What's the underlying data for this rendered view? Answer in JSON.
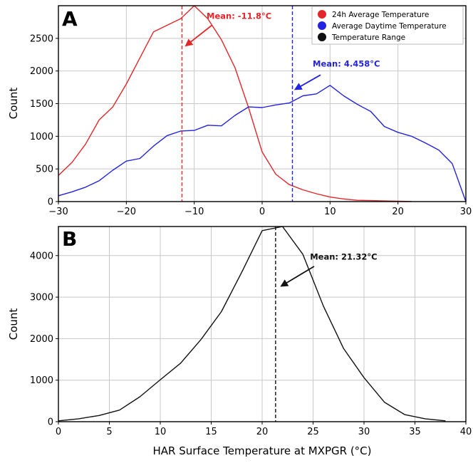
{
  "figure": {
    "xlabel": "HAR Surface Temperature at MXPGR (°C)"
  },
  "colors": {
    "series_24h": "#e3262a",
    "series_daytime": "#2323e0",
    "series_range": "#111111",
    "grid": "#c8c8c8",
    "axis": "#000000"
  },
  "chart_data": [
    {
      "type": "line",
      "panel_label": "A",
      "ylabel": "Count",
      "xlim": [
        -30,
        30
      ],
      "ylim": [
        0,
        3000
      ],
      "xticks": [
        -30,
        -20,
        -10,
        0,
        10,
        20,
        30
      ],
      "yticks": [
        0,
        500,
        1000,
        1500,
        2000,
        2500
      ],
      "grid": true,
      "legend_position": "top-right",
      "series": [
        {
          "name": "24h Average Temperature",
          "color": "#e3262a",
          "x": [
            -30,
            -28,
            -26,
            -24,
            -22,
            -20,
            -18,
            -16,
            -14,
            -12,
            -10,
            -8,
            -6,
            -4,
            -2,
            0,
            2,
            4,
            6,
            8,
            10,
            12,
            14,
            16,
            18,
            20,
            22
          ],
          "y": [
            400,
            600,
            880,
            1250,
            1450,
            1800,
            2200,
            2600,
            2700,
            2800,
            3000,
            2800,
            2480,
            2050,
            1440,
            760,
            420,
            260,
            180,
            120,
            70,
            40,
            20,
            15,
            10,
            5,
            2
          ]
        },
        {
          "name": "Average Daytime Temperature",
          "color": "#2323e0",
          "x": [
            -30,
            -28,
            -26,
            -24,
            -22,
            -20,
            -18,
            -16,
            -14,
            -12,
            -10,
            -8,
            -6,
            -4,
            -2,
            0,
            2,
            4,
            6,
            8,
            10,
            12,
            14,
            16,
            18,
            20,
            22,
            24,
            26,
            28,
            30
          ],
          "y": [
            90,
            150,
            220,
            320,
            480,
            620,
            660,
            850,
            1010,
            1080,
            1090,
            1170,
            1160,
            1320,
            1450,
            1440,
            1480,
            1510,
            1620,
            1650,
            1780,
            1620,
            1490,
            1380,
            1150,
            1060,
            1000,
            900,
            790,
            580,
            0
          ]
        },
        {
          "name": "Temperature Range",
          "color": "#111111",
          "x": [],
          "y": []
        }
      ],
      "mean_lines": [
        {
          "series": "24h Average Temperature",
          "x": -11.8,
          "color": "#e3262a",
          "label": "Mean: -11.8°C",
          "label_x": -3.4,
          "label_y": 2800,
          "arrow_from": [
            -7.4,
            2700
          ],
          "arrow_to": [
            -11.2,
            2390
          ]
        },
        {
          "series": "Average Daytime Temperature",
          "x": 4.458,
          "color": "#2323e0",
          "label": "Mean: 4.458°C",
          "label_x": 12.4,
          "label_y": 2070,
          "arrow_from": [
            8.6,
            1940
          ],
          "arrow_to": [
            4.9,
            1720
          ]
        }
      ]
    },
    {
      "type": "line",
      "panel_label": "B",
      "ylabel": "Count",
      "xlim": [
        0,
        40
      ],
      "ylim": [
        0,
        4700
      ],
      "xticks": [
        0,
        5,
        10,
        15,
        20,
        25,
        30,
        35,
        40
      ],
      "yticks": [
        0,
        1000,
        2000,
        3000,
        4000
      ],
      "grid": true,
      "series": [
        {
          "name": "Temperature Range",
          "color": "#111111",
          "x": [
            0,
            2,
            4,
            6,
            8,
            10,
            12,
            14,
            16,
            18,
            20,
            21,
            22,
            24,
            26,
            28,
            30,
            32,
            34,
            36,
            38
          ],
          "y": [
            20,
            70,
            150,
            280,
            600,
            1010,
            1410,
            1980,
            2650,
            3600,
            4600,
            4650,
            4700,
            4030,
            2790,
            1760,
            1060,
            470,
            170,
            70,
            20
          ]
        }
      ],
      "mean_lines": [
        {
          "series": "Temperature Range",
          "x": 21.32,
          "color": "#111111",
          "label": "Mean: 21.32°C",
          "label_x": 28,
          "label_y": 3900,
          "arrow_from": [
            25.1,
            3740
          ],
          "arrow_to": [
            21.9,
            3270
          ]
        }
      ]
    }
  ]
}
